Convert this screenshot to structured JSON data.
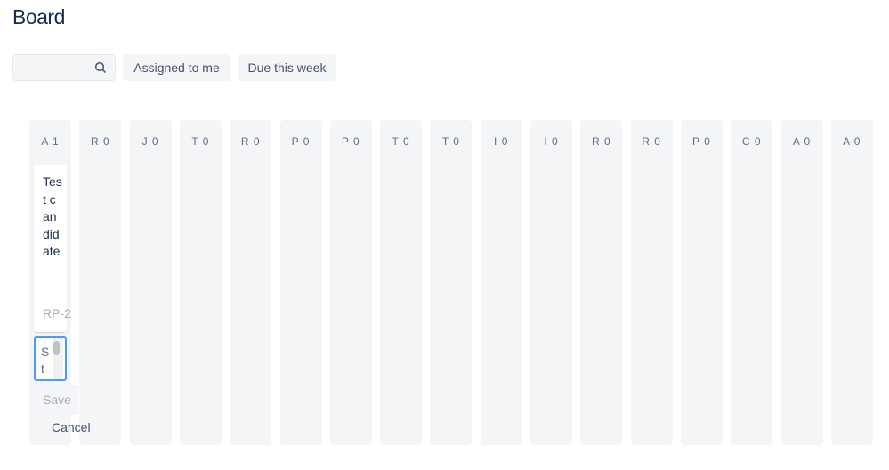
{
  "title": "Board",
  "search": {
    "placeholder": "",
    "icon": "search-icon"
  },
  "filters": [
    "Assigned to me",
    "Due this week"
  ],
  "columns": [
    {
      "label": "A",
      "count": "1"
    },
    {
      "label": "R",
      "count": "0"
    },
    {
      "label": "J",
      "count": "0"
    },
    {
      "label": "T",
      "count": "0"
    },
    {
      "label": "R",
      "count": "0"
    },
    {
      "label": "P",
      "count": "0"
    },
    {
      "label": "P",
      "count": "0"
    },
    {
      "label": "T",
      "count": "0"
    },
    {
      "label": "T",
      "count": "0"
    },
    {
      "label": "I",
      "count": "0"
    },
    {
      "label": "I",
      "count": "0"
    },
    {
      "label": "R",
      "count": "0"
    },
    {
      "label": "R",
      "count": "0"
    },
    {
      "label": "P",
      "count": "0"
    },
    {
      "label": "C",
      "count": "0"
    },
    {
      "label": "A",
      "count": "0"
    },
    {
      "label": "A",
      "count": "0"
    }
  ],
  "card": {
    "title": "Test candidate",
    "key": "RP-2"
  },
  "editor": {
    "value": "St",
    "save": "Save",
    "cancel": "Cancel"
  }
}
